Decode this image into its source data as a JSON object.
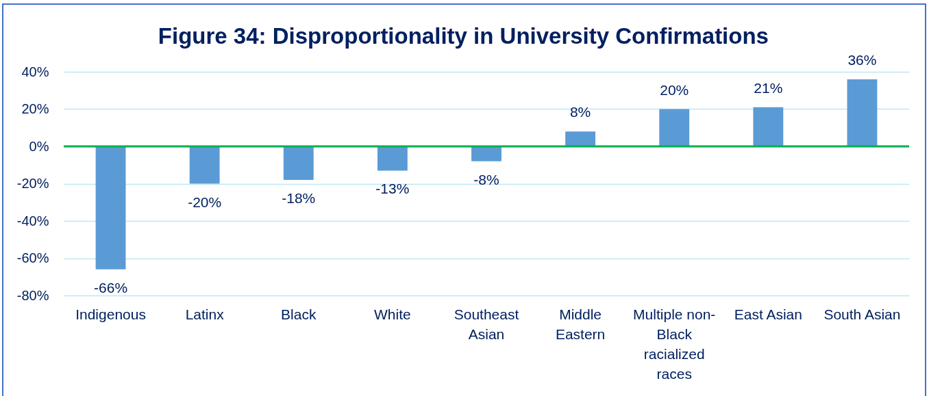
{
  "chart_data": {
    "type": "bar",
    "title": "Figure 34: Disproportionality in University Confirmations",
    "categories": [
      "Indigenous",
      "Latinx",
      "Black",
      "White",
      "Southeast Asian",
      "Middle Eastern",
      "Multiple non-Black racialized races",
      "East Asian",
      "South Asian"
    ],
    "values": [
      -66,
      -20,
      -18,
      -13,
      -8,
      8,
      20,
      21,
      36
    ],
    "value_labels": [
      "-66%",
      "-20%",
      "-18%",
      "-13%",
      "-8%",
      "8%",
      "20%",
      "21%",
      "36%"
    ],
    "color": "#5b9bd5",
    "ylim": [
      -80,
      40
    ],
    "yticks": [
      {
        "value": -80,
        "label": "-80%"
      },
      {
        "value": -60,
        "label": "-60%"
      },
      {
        "value": -40,
        "label": "-40%"
      },
      {
        "value": -20,
        "label": "-20%"
      },
      {
        "value": 0,
        "label": "0%"
      },
      {
        "value": 20,
        "label": "20%"
      },
      {
        "value": 40,
        "label": "40%"
      }
    ],
    "grid": "y",
    "ref_lines": [
      {
        "axis": "y",
        "value": 0,
        "color": "#00b050"
      }
    ]
  }
}
